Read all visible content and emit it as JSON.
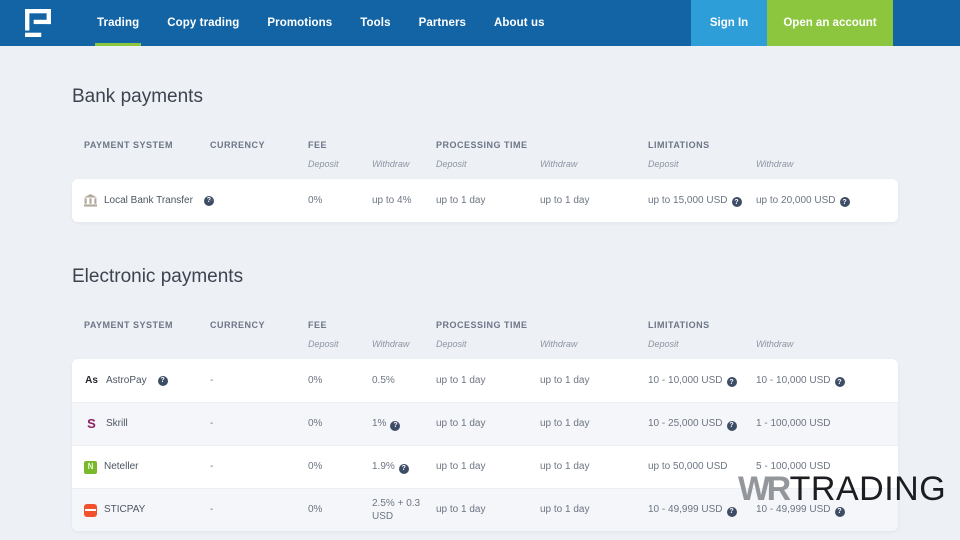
{
  "header": {
    "nav": [
      {
        "label": "Trading",
        "active": true
      },
      {
        "label": "Copy trading",
        "active": false
      },
      {
        "label": "Promotions",
        "active": false
      },
      {
        "label": "Tools",
        "active": false
      },
      {
        "label": "Partners",
        "active": false
      },
      {
        "label": "About us",
        "active": false
      }
    ],
    "sign_in_label": "Sign In",
    "open_account_label": "Open an account"
  },
  "colors": {
    "header_bg": "#1264a5",
    "sign_in_bg": "#2d9ed8",
    "accent_green": "#8cc63f",
    "page_bg": "#edf0f5"
  },
  "columns": {
    "payment_system": "PAYMENT SYSTEM",
    "currency": "CURRENCY",
    "fee": "FEE",
    "processing_time": "PROCESSING TIME",
    "limitations": "LIMITATIONS",
    "deposit": "Deposit",
    "withdraw": "Withdraw"
  },
  "sections": [
    {
      "title": "Bank payments",
      "rows": [
        {
          "icon": "bank",
          "name": "Local Bank Transfer",
          "name_help": true,
          "currency": "-",
          "fee_deposit": {
            "t": "0%"
          },
          "fee_withdraw": {
            "t": "up to 4%"
          },
          "processing_deposit": {
            "t": "up to 1 day"
          },
          "processing_withdraw": {
            "t": "up to 1 day"
          },
          "limit_deposit": {
            "t": "up to 15,000 USD",
            "h": true
          },
          "limit_withdraw": {
            "t": "up to 20,000 USD",
            "h": true
          }
        }
      ]
    },
    {
      "title": "Electronic payments",
      "rows": [
        {
          "icon": "astropay",
          "name": "AstroPay",
          "name_help": true,
          "currency": "-",
          "fee_deposit": {
            "t": "0%"
          },
          "fee_withdraw": {
            "t": "0.5%"
          },
          "processing_deposit": {
            "t": "up to 1 day"
          },
          "processing_withdraw": {
            "t": "up to 1 day"
          },
          "limit_deposit": {
            "t": "10 - 10,000 USD",
            "h": true
          },
          "limit_withdraw": {
            "t": "10 - 10,000 USD",
            "h": true
          }
        },
        {
          "icon": "skrill",
          "name": "Skrill",
          "name_help": false,
          "currency": "-",
          "fee_deposit": {
            "t": "0%"
          },
          "fee_withdraw": {
            "t": "1%",
            "h": true
          },
          "processing_deposit": {
            "t": "up to 1 day"
          },
          "processing_withdraw": {
            "t": "up to 1 day"
          },
          "limit_deposit": {
            "t": "10 - 25,000 USD",
            "h": true
          },
          "limit_withdraw": {
            "t": "1 - 100,000 USD"
          }
        },
        {
          "icon": "neteller",
          "name": "Neteller",
          "name_help": false,
          "currency": "-",
          "fee_deposit": {
            "t": "0%"
          },
          "fee_withdraw": {
            "t": "1.9%",
            "h": true
          },
          "processing_deposit": {
            "t": "up to 1 day"
          },
          "processing_withdraw": {
            "t": "up to 1 day"
          },
          "limit_deposit": {
            "t": "up to 50,000 USD"
          },
          "limit_withdraw": {
            "t": "5 - 100,000 USD"
          }
        },
        {
          "icon": "sticpay",
          "name": "STICPAY",
          "name_help": false,
          "currency": "-",
          "fee_deposit": {
            "t": "0%"
          },
          "fee_withdraw": {
            "t": "2.5% + 0.3 USD"
          },
          "processing_deposit": {
            "t": "up to 1 day"
          },
          "processing_withdraw": {
            "t": "up to 1 day"
          },
          "limit_deposit": {
            "t": "10 - 49,999 USD",
            "h": true
          },
          "limit_withdraw": {
            "t": "10 - 49,999 USD",
            "h": true
          }
        }
      ]
    }
  ],
  "watermark": {
    "part1": "WR",
    "part2": "TRADING"
  }
}
